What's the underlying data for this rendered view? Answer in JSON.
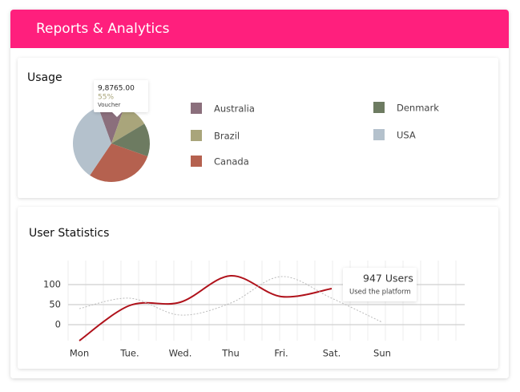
{
  "header": {
    "title": "Reports & Analytics"
  },
  "chart_data": [
    {
      "type": "pie",
      "title": "Usage",
      "categories": [
        "Australia",
        "Brazil",
        "Denmark",
        "Canada",
        "USA"
      ],
      "values": [
        11,
        11,
        14,
        29,
        35
      ],
      "colors": [
        "#8b6f7c",
        "#a9a57b",
        "#6d7b61",
        "#b5614f",
        "#b4c1cc"
      ],
      "annotation": {
        "value": "9,8765.00",
        "percent": "55%",
        "label": "Voucher"
      }
    },
    {
      "type": "line",
      "title": "User Statistics",
      "categories": [
        "Mon",
        "Tue.",
        "Wed.",
        "Thu",
        "Fri.",
        "Sat.",
        "Sun"
      ],
      "series": [
        {
          "color": "#b0121b",
          "style": "solid",
          "values": [
            -40,
            48,
            56,
            122,
            70,
            90,
            null
          ]
        },
        {
          "color": "#bbbbbb",
          "style": "dotted",
          "values": [
            40,
            66,
            24,
            54,
            120,
            66,
            6
          ]
        }
      ],
      "ylim": [
        -40,
        160
      ],
      "yticks": [
        0,
        50,
        100
      ],
      "grid": true,
      "annotation": {
        "value": "947 Users",
        "label": "Used the platform"
      }
    }
  ]
}
